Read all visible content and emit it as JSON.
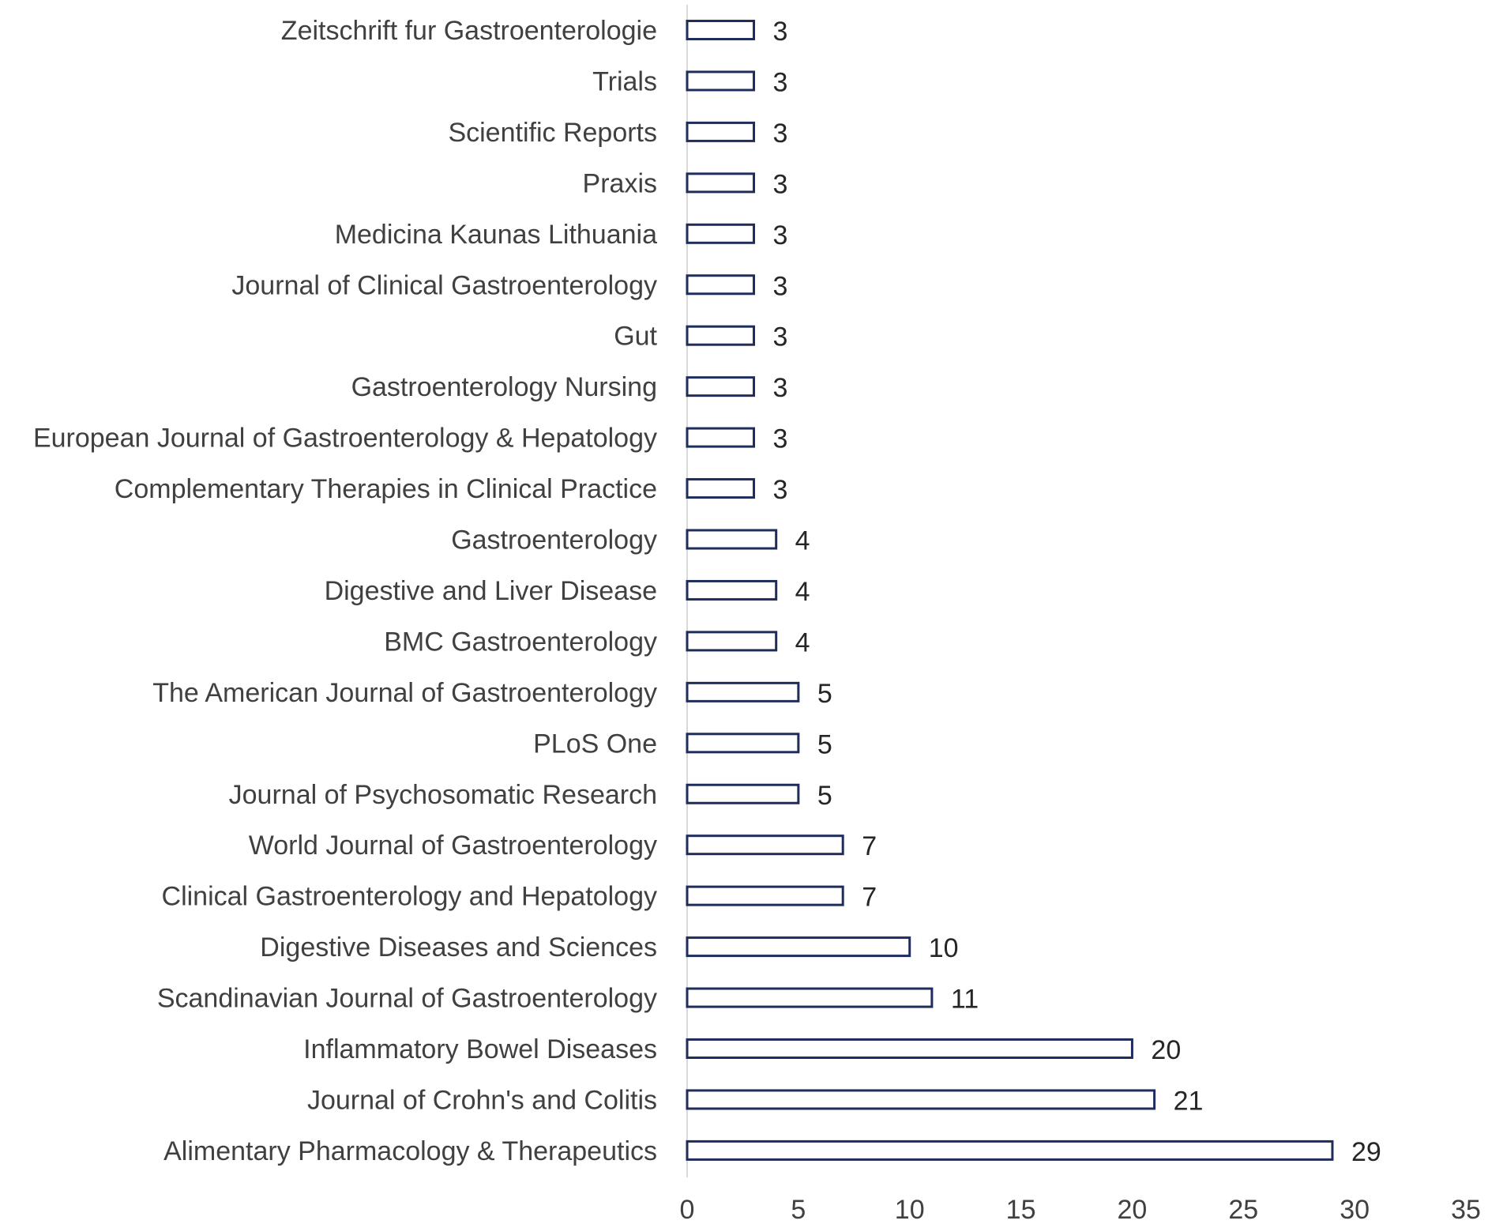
{
  "chart_data": {
    "type": "bar",
    "orientation": "horizontal",
    "title": "",
    "xlabel": "",
    "ylabel": "",
    "xlim": [
      0,
      35
    ],
    "x_ticks": [
      0,
      5,
      10,
      15,
      20,
      25,
      30,
      35
    ],
    "grid": false,
    "legend": "none",
    "bar_style": "outlined",
    "colors": {
      "bar_stroke": "#1f2d5c",
      "bar_fill": "#ffffff",
      "axis": "#d9d9d9",
      "text": "#404040"
    },
    "categories": [
      "Zeitschrift fur Gastroenterologie",
      "Trials",
      "Scientific Reports",
      "Praxis",
      "Medicina Kaunas Lithuania",
      "Journal of Clinical Gastroenterology",
      "Gut",
      "Gastroenterology Nursing",
      "European Journal of Gastroenterology & Hepatology",
      "Complementary Therapies in Clinical Practice",
      "Gastroenterology",
      "Digestive and Liver Disease",
      "BMC Gastroenterology",
      "The American Journal of Gastroenterology",
      "PLoS One",
      "Journal of Psychosomatic Research",
      "World Journal of Gastroenterology",
      "Clinical Gastroenterology and Hepatology",
      "Digestive Diseases and Sciences",
      "Scandinavian Journal of Gastroenterology",
      "Inflammatory Bowel Diseases",
      "Journal of Crohn's and Colitis",
      "Alimentary Pharmacology & Therapeutics"
    ],
    "values": [
      3,
      3,
      3,
      3,
      3,
      3,
      3,
      3,
      3,
      3,
      4,
      4,
      4,
      5,
      5,
      5,
      7,
      7,
      10,
      11,
      20,
      21,
      29
    ]
  }
}
